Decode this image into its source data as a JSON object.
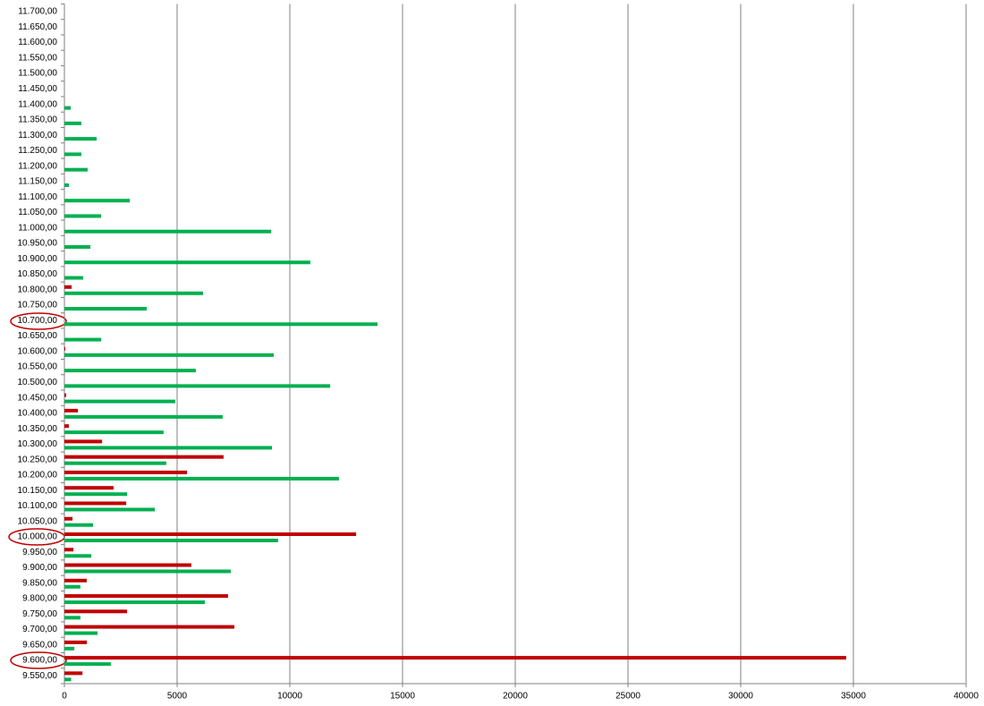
{
  "chart_data": {
    "type": "bar",
    "orientation": "horizontal",
    "categories": [
      "9.550,00",
      "9.600,00",
      "9.650,00",
      "9.700,00",
      "9.750,00",
      "9.800,00",
      "9.850,00",
      "9.900,00",
      "9.950,00",
      "10.000,00",
      "10.050,00",
      "10.100,00",
      "10.150,00",
      "10.200,00",
      "10.250,00",
      "10.300,00",
      "10.350,00",
      "10.400,00",
      "10.450,00",
      "10.500,00",
      "10.550,00",
      "10.600,00",
      "10.650,00",
      "10.700,00",
      "10.750,00",
      "10.800,00",
      "10.850,00",
      "10.900,00",
      "10.950,00",
      "11.000,00",
      "11.050,00",
      "11.100,00",
      "11.150,00",
      "11.200,00",
      "11.250,00",
      "11.300,00",
      "11.350,00",
      "11.400,00",
      "11.450,00",
      "11.500,00",
      "11.550,00",
      "11.600,00",
      "11.650,00",
      "11.700,00"
    ],
    "series": [
      {
        "color": "#c00000",
        "values": [
          800,
          34680,
          1000,
          7540,
          2780,
          7260,
          990,
          5630,
          400,
          12940,
          360,
          2740,
          2180,
          5440,
          7060,
          1670,
          200,
          600,
          80,
          null,
          null,
          40,
          null,
          null,
          null,
          320,
          null,
          null,
          null,
          null,
          null,
          null,
          null,
          null,
          null,
          null,
          null,
          null,
          null,
          null,
          null,
          null,
          null,
          null
        ]
      },
      {
        "color": "#00b050",
        "values": [
          300,
          2060,
          440,
          1470,
          710,
          6230,
          710,
          7380,
          1190,
          9480,
          1270,
          4010,
          2780,
          12180,
          4520,
          9210,
          4400,
          7020,
          4920,
          11790,
          5830,
          9290,
          1630,
          13890,
          3650,
          6150,
          830,
          10910,
          1150,
          9170,
          1630,
          2900,
          200,
          1030,
          750,
          1430,
          750,
          280,
          null,
          null,
          null,
          null,
          null,
          null
        ]
      }
    ],
    "xlim": [
      0,
      40000
    ],
    "xticks": [
      0,
      5000,
      10000,
      15000,
      20000,
      25000,
      30000,
      35000,
      40000
    ],
    "grid": true
  }
}
